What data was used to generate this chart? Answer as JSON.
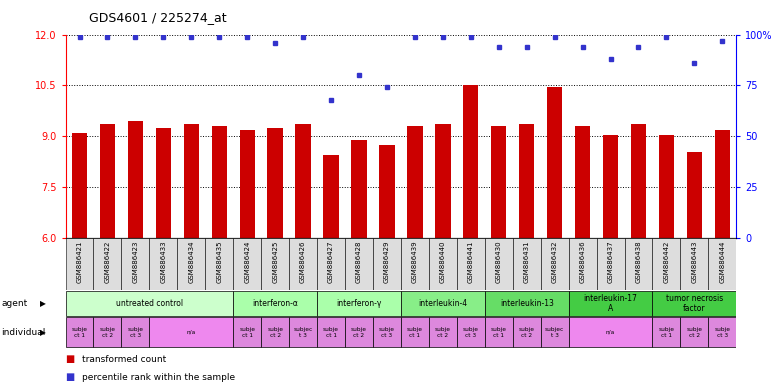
{
  "title": "GDS4601 / 225274_at",
  "samples": [
    "GSM886421",
    "GSM886422",
    "GSM886423",
    "GSM886433",
    "GSM886434",
    "GSM886435",
    "GSM886424",
    "GSM886425",
    "GSM886426",
    "GSM886427",
    "GSM886428",
    "GSM886429",
    "GSM886439",
    "GSM886440",
    "GSM886441",
    "GSM886430",
    "GSM886431",
    "GSM886432",
    "GSM886436",
    "GSM886437",
    "GSM886438",
    "GSM886442",
    "GSM886443",
    "GSM886444"
  ],
  "bar_values": [
    9.1,
    9.35,
    9.45,
    9.25,
    9.35,
    9.3,
    9.2,
    9.25,
    9.35,
    8.45,
    8.9,
    8.75,
    9.3,
    9.35,
    10.5,
    9.3,
    9.35,
    10.45,
    9.3,
    9.05,
    9.35,
    9.05,
    8.55,
    9.2
  ],
  "percentile_values": [
    99,
    99,
    99,
    99,
    99,
    99,
    99,
    96,
    99,
    68,
    80,
    74,
    99,
    99,
    99,
    94,
    94,
    99,
    94,
    88,
    94,
    99,
    86,
    97
  ],
  "ylim_left": [
    6,
    12
  ],
  "ylim_right": [
    0,
    100
  ],
  "yticks_left": [
    6,
    7.5,
    9,
    10.5,
    12
  ],
  "yticks_right": [
    0,
    25,
    50,
    75,
    100
  ],
  "bar_color": "#cc0000",
  "dot_color": "#3333cc",
  "agent_groups": [
    {
      "label": "untreated control",
      "start": 0,
      "end": 5,
      "color": "#ccffcc"
    },
    {
      "label": "interferon-α",
      "start": 6,
      "end": 8,
      "color": "#99ff99"
    },
    {
      "label": "interferon-γ",
      "start": 9,
      "end": 11,
      "color": "#99ff99"
    },
    {
      "label": "interleukin-4",
      "start": 12,
      "end": 14,
      "color": "#66ee66"
    },
    {
      "label": "interleukin-13",
      "start": 15,
      "end": 17,
      "color": "#55dd55"
    },
    {
      "label": "interleukin-17\nA",
      "start": 18,
      "end": 20,
      "color": "#33cc33"
    },
    {
      "label": "tumor necrosis\nfactor",
      "start": 21,
      "end": 23,
      "color": "#33cc33"
    }
  ],
  "individual_groups": [
    {
      "label": "subje\nct 1",
      "start": 0,
      "end": 0
    },
    {
      "label": "subje\nct 2",
      "start": 1,
      "end": 1
    },
    {
      "label": "subje\nct 3",
      "start": 2,
      "end": 2
    },
    {
      "label": "n/a",
      "start": 3,
      "end": 5
    },
    {
      "label": "subje\nct 1",
      "start": 6,
      "end": 6
    },
    {
      "label": "subje\nct 2",
      "start": 7,
      "end": 7
    },
    {
      "label": "subjec\nt 3",
      "start": 8,
      "end": 8
    },
    {
      "label": "subje\nct 1",
      "start": 9,
      "end": 9
    },
    {
      "label": "subje\nct 2",
      "start": 10,
      "end": 10
    },
    {
      "label": "subje\nct 3",
      "start": 11,
      "end": 11
    },
    {
      "label": "subje\nct 1",
      "start": 12,
      "end": 12
    },
    {
      "label": "subje\nct 2",
      "start": 13,
      "end": 13
    },
    {
      "label": "subje\nct 3",
      "start": 14,
      "end": 14
    },
    {
      "label": "subje\nct 1",
      "start": 15,
      "end": 15
    },
    {
      "label": "subje\nct 2",
      "start": 16,
      "end": 16
    },
    {
      "label": "subjec\nt 3",
      "start": 17,
      "end": 17
    },
    {
      "label": "n/a",
      "start": 18,
      "end": 20
    },
    {
      "label": "subje\nct 1",
      "start": 21,
      "end": 21
    },
    {
      "label": "subje\nct 2",
      "start": 22,
      "end": 22
    },
    {
      "label": "subje\nct 3",
      "start": 23,
      "end": 23
    }
  ],
  "indiv_color": "#dd88dd",
  "indiv_na_color": "#ee88ee",
  "grid_color": "black",
  "spine_color_left": "red",
  "spine_color_right": "blue"
}
